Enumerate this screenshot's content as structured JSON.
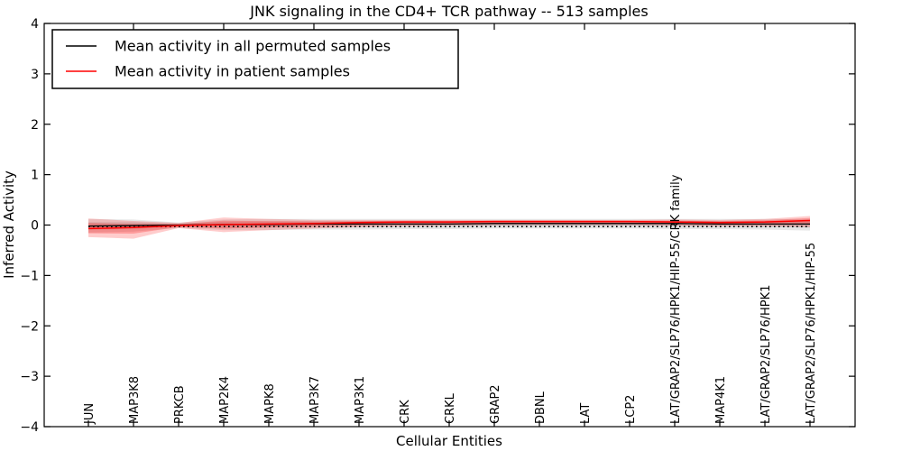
{
  "figure": {
    "title": "JNK signaling in the CD4+ TCR pathway -- 513 samples",
    "xlabel": "Cellular Entities",
    "ylabel": "Inferred Activity"
  },
  "legend": {
    "items": [
      {
        "label": "Mean activity in all permuted samples",
        "color": "#000000"
      },
      {
        "label": "Mean activity in patient samples",
        "color": "#ff0000"
      }
    ]
  },
  "chart_data": {
    "type": "line",
    "title": "JNK signaling in the CD4+ TCR pathway -- 513 samples",
    "xlabel": "Cellular Entities",
    "ylabel": "Inferred Activity",
    "ylim": [
      -4,
      4
    ],
    "yticks": [
      {
        "v": 4,
        "label": "4"
      },
      {
        "v": 3,
        "label": "3"
      },
      {
        "v": 2,
        "label": "2"
      },
      {
        "v": 1,
        "label": "1"
      },
      {
        "v": 0,
        "label": "0"
      },
      {
        "v": -1,
        "label": "−1"
      },
      {
        "v": -2,
        "label": "−2"
      },
      {
        "v": -3,
        "label": "−3"
      },
      {
        "v": -4,
        "label": "−4"
      }
    ],
    "grid": false,
    "legend_position": "upper left",
    "categories": [
      "JUN",
      "MAP3K8",
      "PRKCB",
      "MAP2K4",
      "MAPK8",
      "MAP3K7",
      "MAP3K1",
      "CRK",
      "CRKL",
      "GRAP2",
      "DBNL",
      "LAT",
      "LCP2",
      "LAT/GRAP2/SLP76/HPK1/HIP-55/CRK family",
      "MAP4K1",
      "LAT/GRAP2/SLP76/HPK1",
      "LAT/GRAP2/SLP76/HPK1/HIP-55"
    ],
    "series": [
      {
        "name": "Mean activity in all permuted samples",
        "color": "#000000",
        "style": "solid",
        "values": [
          -0.02,
          -0.01,
          0.0,
          0.01,
          0.01,
          0.02,
          0.02,
          0.02,
          0.02,
          0.03,
          0.03,
          0.03,
          0.03,
          0.03,
          0.02,
          0.02,
          0.02
        ],
        "band_upper": [
          0.12,
          0.11,
          0.05,
          0.11,
          0.12,
          0.12,
          0.12,
          0.12,
          0.12,
          0.12,
          0.12,
          0.12,
          0.12,
          0.12,
          0.12,
          0.12,
          0.12
        ],
        "band_lower": [
          -0.15,
          -0.13,
          -0.06,
          -0.1,
          -0.1,
          -0.09,
          -0.09,
          -0.08,
          -0.08,
          -0.07,
          -0.07,
          -0.07,
          -0.07,
          -0.08,
          -0.08,
          -0.09,
          -0.11
        ]
      },
      {
        "name": "Mean activity in patient samples",
        "color": "#ff0000",
        "style": "solid",
        "values": [
          -0.07,
          -0.05,
          -0.01,
          0.01,
          0.02,
          0.03,
          0.05,
          0.06,
          0.06,
          0.07,
          0.07,
          0.07,
          0.07,
          0.06,
          0.05,
          0.06,
          0.09
        ],
        "band_upper": [
          0.13,
          0.08,
          0.04,
          0.15,
          0.12,
          0.1,
          0.1,
          0.1,
          0.1,
          0.1,
          0.1,
          0.1,
          0.1,
          0.11,
          0.1,
          0.12,
          0.18
        ],
        "band_lower": [
          -0.24,
          -0.27,
          -0.06,
          -0.14,
          -0.1,
          -0.07,
          -0.04,
          -0.02,
          -0.01,
          0.0,
          0.0,
          0.0,
          0.0,
          -0.01,
          -0.02,
          -0.02,
          -0.04
        ]
      },
      {
        "name": "zero reference",
        "color": "#000000",
        "style": "dotted",
        "values": [
          -0.03,
          -0.03,
          -0.03,
          -0.03,
          -0.03,
          -0.03,
          -0.03,
          -0.03,
          -0.03,
          -0.03,
          -0.03,
          -0.03,
          -0.03,
          -0.03,
          -0.03,
          -0.03,
          -0.03
        ]
      }
    ]
  }
}
